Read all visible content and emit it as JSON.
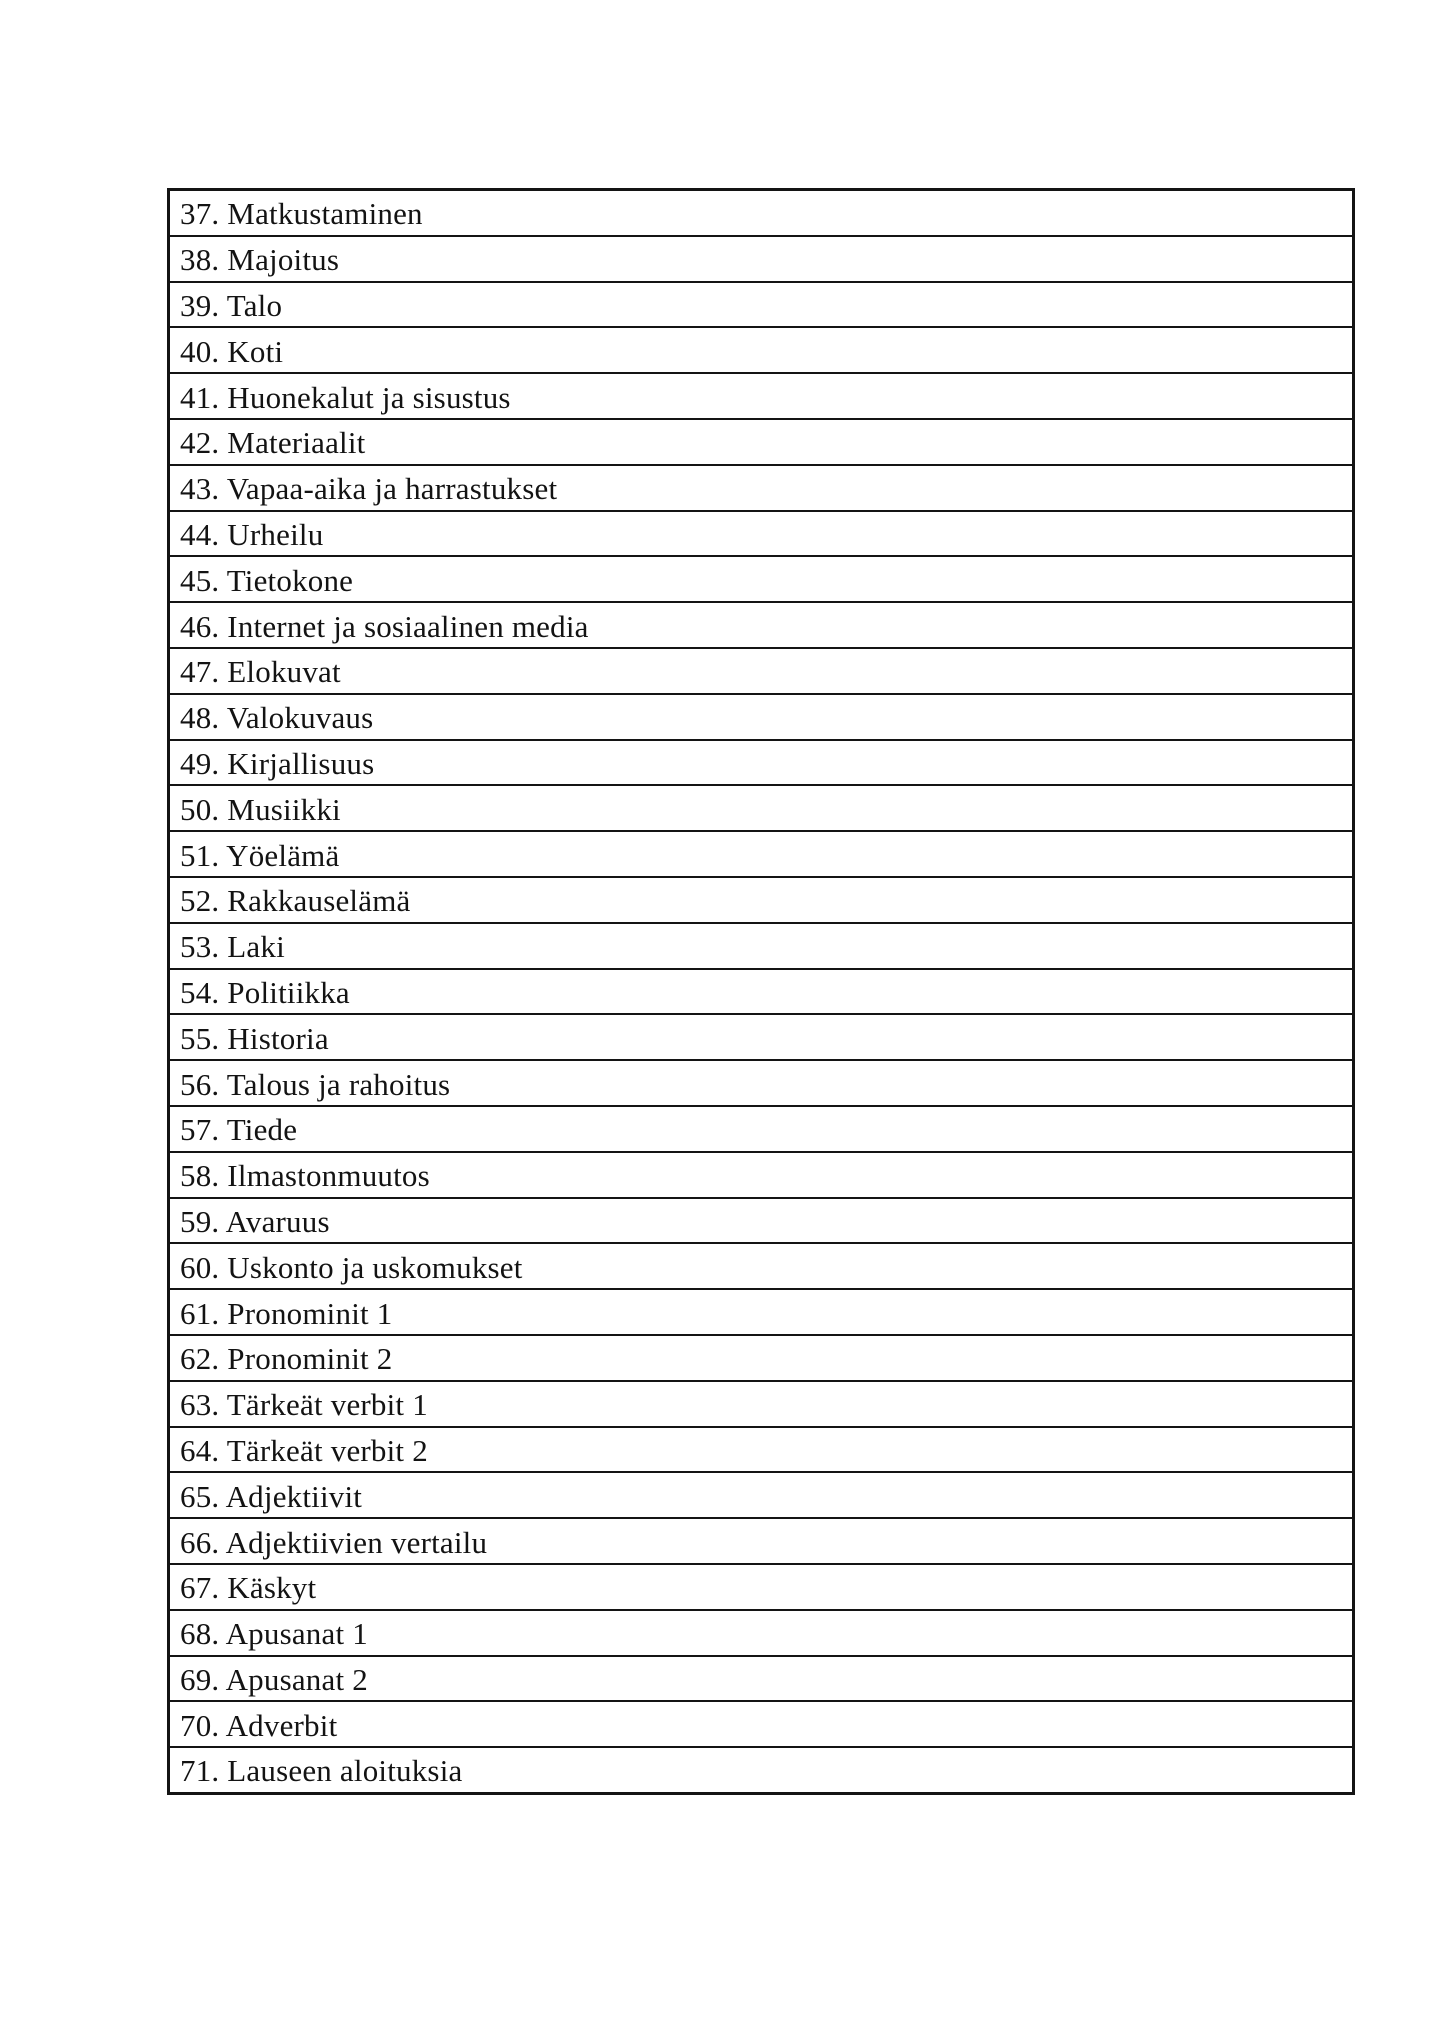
{
  "page": {
    "background": "#ffffff",
    "border_color": "#141414",
    "text_color": "#131313"
  },
  "toc": {
    "items": [
      "37. Matkustaminen",
      "38. Majoitus",
      "39. Talo",
      "40. Koti",
      "41. Huonekalut ja sisustus",
      "42. Materiaalit",
      "43. Vapaa-aika ja harrastukset",
      "44. Urheilu",
      "45. Tietokone",
      "46. Internet ja sosiaalinen media",
      "47. Elokuvat",
      "48. Valokuvaus",
      "49. Kirjallisuus",
      "50. Musiikki",
      "51. Yöelämä",
      "52. Rakkauselämä",
      "53. Laki",
      "54. Politiikka",
      "55. Historia",
      "56. Talous ja rahoitus",
      "57. Tiede",
      "58. Ilmastonmuutos",
      "59. Avaruus",
      "60. Uskonto ja uskomukset",
      "61. Pronominit 1",
      "62. Pronominit 2",
      "63. Tärkeät verbit 1",
      "64. Tärkeät verbit 2",
      "65. Adjektiivit",
      "66. Adjektiivien vertailu",
      "67. Käskyt",
      "68. Apusanat 1",
      "69. Apusanat 2",
      "70. Adverbit",
      "71. Lauseen aloituksia"
    ]
  }
}
